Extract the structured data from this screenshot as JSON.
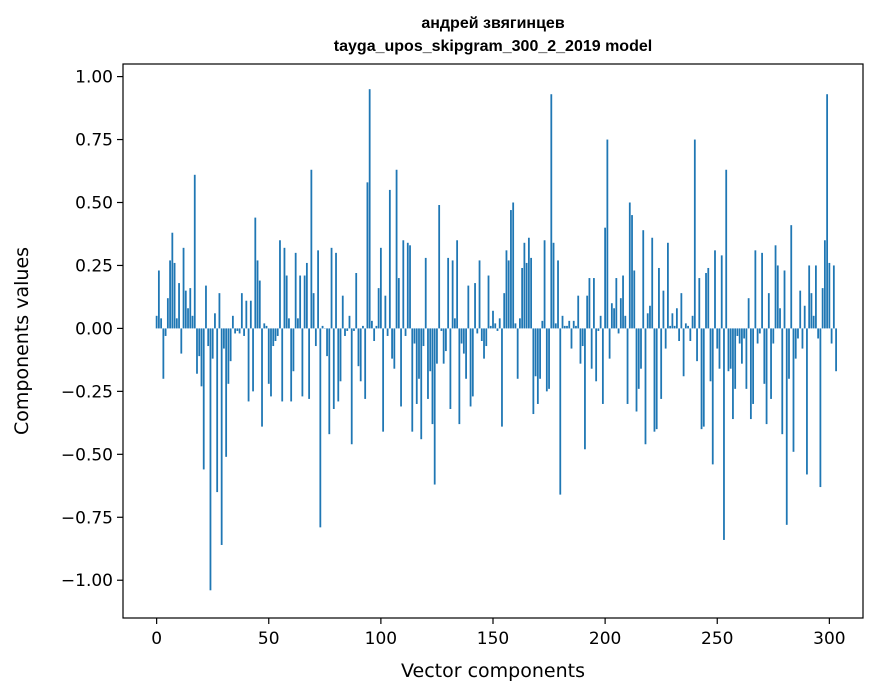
{
  "chart_data": {
    "type": "bar",
    "title": "андрей звягинцев",
    "subtitle": "tayga_upos_skipgram_300_2_2019 model",
    "xlabel": "Vector components",
    "ylabel": "Components values",
    "xlim": [
      -15,
      315
    ],
    "ylim": [
      -1.15,
      1.05
    ],
    "x_ticks": [
      0,
      50,
      100,
      150,
      200,
      250,
      300
    ],
    "x_tick_labels": [
      "0",
      "50",
      "100",
      "150",
      "200",
      "250",
      "300"
    ],
    "y_ticks": [
      1.0,
      0.75,
      0.5,
      0.25,
      0.0,
      -0.25,
      -0.5,
      -0.75,
      -1.0
    ],
    "y_tick_labels": [
      "1.00",
      "0.75",
      "0.50",
      "0.25",
      "0.00",
      "−0.25",
      "−0.50",
      "−0.75",
      "−1.00"
    ],
    "bar_color": "#1f77b4",
    "values": [
      0.05,
      0.23,
      0.04,
      -0.2,
      -0.03,
      0.12,
      0.27,
      0.38,
      0.26,
      0.04,
      0.18,
      -0.1,
      0.32,
      0.15,
      0.08,
      0.16,
      0.05,
      0.61,
      -0.18,
      -0.11,
      -0.23,
      -0.56,
      0.17,
      -0.07,
      -1.04,
      -0.12,
      0.06,
      -0.65,
      0.14,
      -0.86,
      -0.08,
      -0.51,
      -0.22,
      -0.13,
      0.05,
      -0.02,
      -0.01,
      -0.02,
      0.14,
      -0.03,
      0.11,
      -0.29,
      0.11,
      -0.25,
      0.44,
      0.27,
      0.19,
      -0.39,
      0.02,
      0.01,
      -0.22,
      -0.27,
      -0.07,
      -0.05,
      -0.03,
      0.35,
      -0.29,
      0.32,
      0.21,
      0.04,
      -0.29,
      -0.17,
      0.3,
      0.04,
      0.21,
      -0.27,
      0.21,
      0.26,
      -0.28,
      0.63,
      0.14,
      -0.07,
      0.31,
      -0.79,
      0.01,
      0.0,
      -0.11,
      -0.42,
      0.32,
      -0.32,
      0.3,
      -0.29,
      -0.21,
      0.13,
      -0.03,
      -0.01,
      0.05,
      -0.46,
      -0.01,
      0.22,
      -0.15,
      -0.21,
      0.01,
      -0.28,
      0.58,
      0.95,
      0.03,
      -0.05,
      0.01,
      0.16,
      0.32,
      -0.41,
      0.13,
      -0.03,
      0.55,
      -0.12,
      -0.16,
      0.63,
      0.2,
      -0.31,
      0.35,
      -0.03,
      0.34,
      0.33,
      -0.41,
      -0.06,
      -0.3,
      -0.2,
      -0.44,
      -0.07,
      0.28,
      -0.28,
      -0.17,
      -0.38,
      -0.62,
      -0.14,
      0.49,
      -0.01,
      -0.14,
      -0.09,
      0.28,
      -0.32,
      0.27,
      0.04,
      0.35,
      -0.38,
      -0.06,
      -0.1,
      -0.2,
      0.17,
      -0.31,
      -0.27,
      0.18,
      -0.02,
      0.27,
      -0.05,
      -0.12,
      -0.07,
      0.21,
      0.01,
      0.07,
      0.02,
      -0.01,
      0.04,
      -0.39,
      0.14,
      0.31,
      0.27,
      0.47,
      0.5,
      0.02,
      -0.2,
      0.04,
      0.24,
      0.34,
      0.26,
      0.36,
      0.28,
      -0.34,
      -0.19,
      -0.3,
      -0.2,
      0.03,
      0.35,
      -0.25,
      -0.24,
      0.93,
      0.34,
      0.02,
      0.27,
      -0.66,
      0.05,
      0.01,
      0.01,
      0.03,
      -0.08,
      0.03,
      0.01,
      0.13,
      -0.14,
      -0.07,
      -0.48,
      0.13,
      0.2,
      -0.16,
      0.2,
      -0.21,
      -0.01,
      0.05,
      -0.3,
      0.4,
      0.75,
      -0.12,
      0.1,
      0.08,
      0.2,
      -0.02,
      0.12,
      0.21,
      0.05,
      -0.3,
      0.5,
      0.45,
      0.23,
      -0.33,
      -0.24,
      -0.16,
      0.39,
      -0.46,
      0.06,
      0.09,
      0.36,
      -0.41,
      -0.4,
      0.24,
      -0.28,
      0.15,
      -0.08,
      0.34,
      0.01,
      0.06,
      0.01,
      0.08,
      -0.05,
      0.14,
      -0.19,
      0.02,
      0.01,
      -0.05,
      0.05,
      0.75,
      -0.13,
      0.2,
      -0.4,
      -0.39,
      0.22,
      0.24,
      -0.21,
      -0.54,
      0.31,
      -0.08,
      -0.16,
      0.29,
      -0.84,
      0.63,
      -0.17,
      -0.16,
      -0.36,
      -0.24,
      -0.03,
      -0.06,
      -0.14,
      -0.04,
      -0.24,
      0.12,
      -0.36,
      -0.3,
      0.31,
      -0.06,
      -0.02,
      0.3,
      -0.22,
      -0.38,
      0.14,
      -0.28,
      -0.06,
      0.33,
      0.25,
      0.08,
      -0.42,
      0.23,
      -0.78,
      -0.2,
      0.41,
      -0.49,
      -0.12,
      -0.04,
      0.15,
      -0.08,
      0.09,
      -0.58,
      0.25,
      0.14,
      0.05,
      0.25,
      -0.04,
      -0.63,
      0.16,
      0.35,
      0.93,
      0.26,
      -0.06,
      0.25,
      -0.17
    ]
  }
}
